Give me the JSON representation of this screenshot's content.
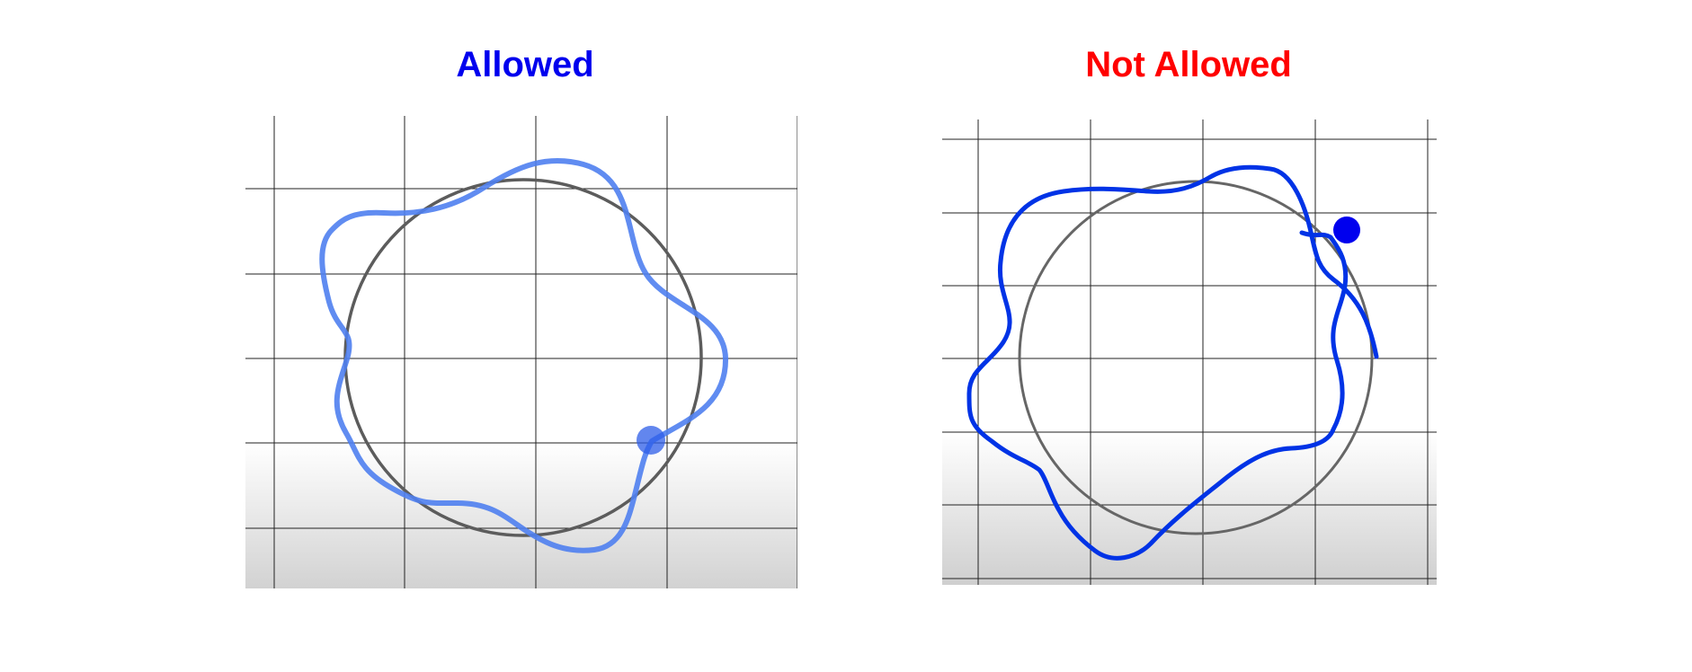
{
  "colors": {
    "allowed": "#0000ee",
    "not_allowed": "#ff0000",
    "allowed_stroke": "#4f7ff0",
    "not_allowed_stroke": "#0033e6",
    "circle": "#5c5c5c",
    "grid": "#222222"
  },
  "panels": {
    "left": {
      "title": "Allowed",
      "marker_style": "translucent"
    },
    "right": {
      "title": "Not Allowed",
      "marker_style": "solid"
    }
  }
}
